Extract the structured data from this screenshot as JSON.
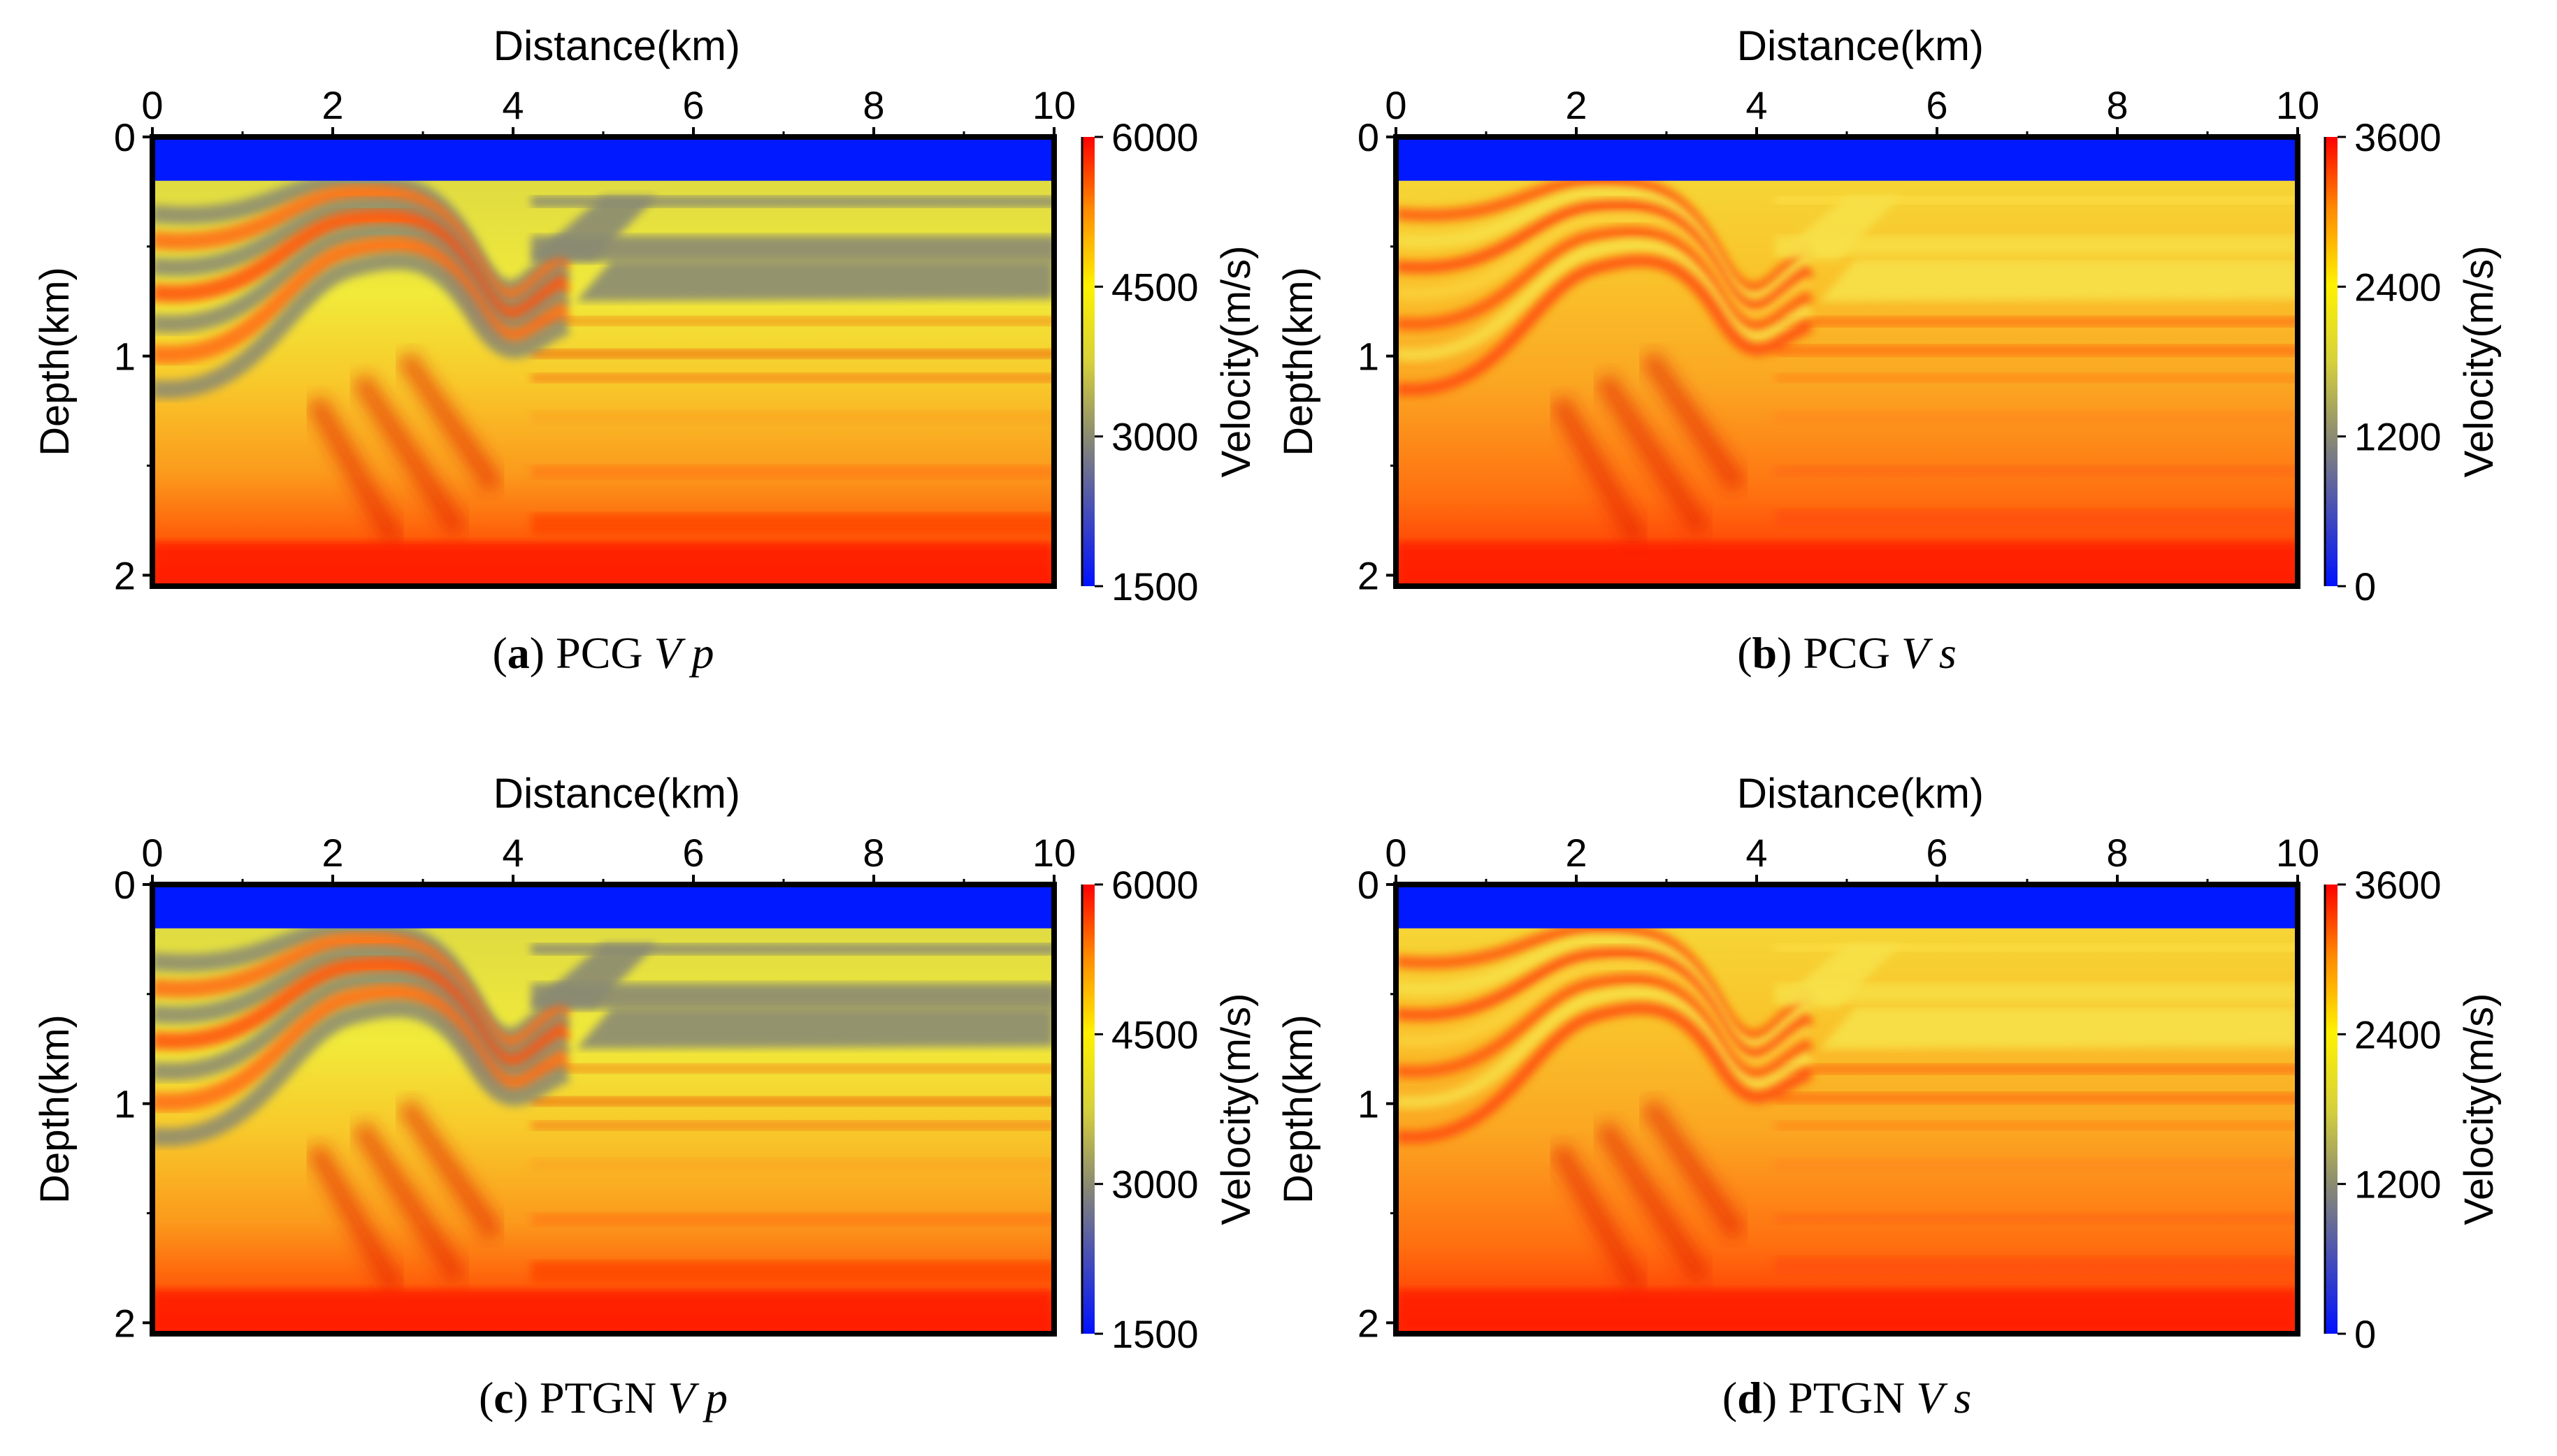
{
  "figure": {
    "panels": [
      {
        "tag": "(a)",
        "label": "a",
        "method": "PCG",
        "param": "Vp",
        "param_main": "V",
        "param_sub": "p"
      },
      {
        "tag": "(b)",
        "label": "b",
        "method": "PCG",
        "param": "Vs",
        "param_main": "V",
        "param_sub": "s"
      },
      {
        "tag": "(c)",
        "label": "c",
        "method": "PTGN",
        "param": "Vp",
        "param_main": "V",
        "param_sub": "p"
      },
      {
        "tag": "(d)",
        "label": "d",
        "method": "PTGN",
        "param": "Vs",
        "param_main": "V",
        "param_sub": "s"
      }
    ]
  },
  "colors": {
    "water": "#0019ff",
    "grey": "#8a8a73",
    "yellow": "#f5ef3a",
    "orange": "#f9ae1d",
    "red": "#ff1a00",
    "darkred": "#e21d00"
  },
  "chart_data": [
    {
      "type": "heatmap",
      "panel": "a",
      "param": "Vp",
      "title": "Distance(km)",
      "xlabel": "Distance(km)",
      "ylabel": "Depth(km)",
      "x_ticks": [
        0,
        2,
        4,
        6,
        8,
        10
      ],
      "y_ticks": [
        0,
        1,
        2
      ],
      "xlim": [
        0,
        10
      ],
      "ylim": [
        0,
        2.05
      ],
      "colorbar": {
        "label": "Velocity(m/s)",
        "ticks": [
          1500,
          3000,
          4500,
          6000
        ],
        "range": [
          1500,
          6000
        ]
      },
      "water_depth_km": 0.2
    },
    {
      "type": "heatmap",
      "panel": "b",
      "param": "Vs",
      "title": "Distance(km)",
      "xlabel": "Distance(km)",
      "ylabel": "Depth(km)",
      "x_ticks": [
        0,
        2,
        4,
        6,
        8,
        10
      ],
      "y_ticks": [
        0,
        1,
        2
      ],
      "xlim": [
        0,
        10
      ],
      "ylim": [
        0,
        2.05
      ],
      "colorbar": {
        "label": "Velocity(m/s)",
        "ticks": [
          0,
          1200,
          2400,
          3600
        ],
        "range": [
          0,
          3600
        ]
      },
      "water_depth_km": 0.2
    },
    {
      "type": "heatmap",
      "panel": "c",
      "param": "Vp",
      "title": "Distance(km)",
      "xlabel": "Distance(km)",
      "ylabel": "Depth(km)",
      "x_ticks": [
        0,
        2,
        4,
        6,
        8,
        10
      ],
      "y_ticks": [
        0,
        1,
        2
      ],
      "xlim": [
        0,
        10
      ],
      "ylim": [
        0,
        2.05
      ],
      "colorbar": {
        "label": "Velocity(m/s)",
        "ticks": [
          1500,
          3000,
          4500,
          6000
        ],
        "range": [
          1500,
          6000
        ]
      },
      "water_depth_km": 0.2
    },
    {
      "type": "heatmap",
      "panel": "d",
      "param": "Vs",
      "title": "Distance(km)",
      "xlabel": "Distance(km)",
      "ylabel": "Depth(km)",
      "x_ticks": [
        0,
        2,
        4,
        6,
        8,
        10
      ],
      "y_ticks": [
        0,
        1,
        2
      ],
      "xlim": [
        0,
        10
      ],
      "ylim": [
        0,
        2.05
      ],
      "colorbar": {
        "label": "Velocity(m/s)",
        "ticks": [
          0,
          1200,
          2400,
          3600
        ],
        "range": [
          0,
          3600
        ]
      },
      "water_depth_km": 0.2
    }
  ]
}
